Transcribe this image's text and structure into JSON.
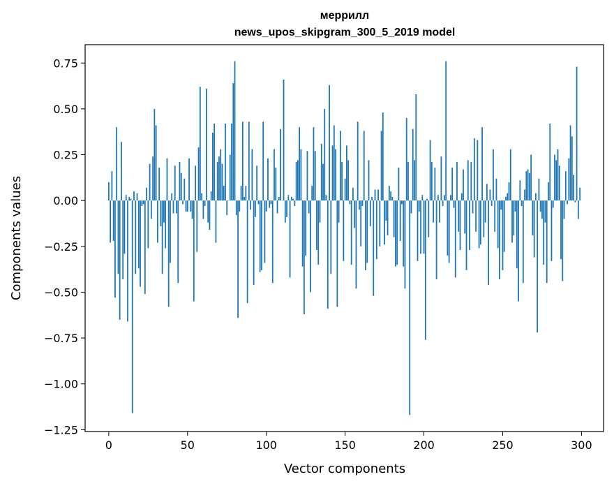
{
  "chart_data": {
    "type": "bar",
    "title": "меррилл",
    "subtitle": "news_upos_skipgram_300_5_2019 model",
    "xlabel": "Vector components",
    "ylabel": "Components values",
    "xlim": [
      -15,
      314
    ],
    "ylim": [
      -1.26,
      0.85
    ],
    "xticks": [
      0,
      50,
      100,
      150,
      200,
      250,
      300
    ],
    "yticks": [
      -1.25,
      -1.0,
      -0.75,
      -0.5,
      -0.25,
      0.0,
      0.25,
      0.5,
      0.75
    ],
    "ytick_labels": [
      "−1.25",
      "−1.00",
      "−0.75",
      "−0.50",
      "−0.25",
      "0.00",
      "0.25",
      "0.50",
      "0.75"
    ],
    "grid": false,
    "legend": "none",
    "color": "#1f77b4",
    "values": [
      0.1,
      -0.23,
      0.16,
      -0.22,
      -0.53,
      0.4,
      -0.4,
      -0.65,
      0.32,
      -0.43,
      -0.29,
      0.03,
      -0.66,
      0.02,
      0.01,
      -1.16,
      0.05,
      -0.4,
      0.04,
      -0.37,
      -0.47,
      -0.03,
      -0.02,
      -0.51,
      0.07,
      -0.26,
      0.2,
      -0.1,
      0.24,
      0.5,
      0.41,
      -0.23,
      0.18,
      -0.14,
      -0.4,
      -0.12,
      -0.26,
      0.23,
      -0.58,
      -0.34,
      0.04,
      -0.07,
      0.19,
      -0.07,
      -0.45,
      0.21,
      0.15,
      -0.02,
      0.12,
      -0.06,
      -0.06,
      0.23,
      -0.06,
      -0.1,
      -0.55,
      0.19,
      -0.28,
      0.29,
      0.62,
      0.04,
      -0.1,
      -0.03,
      0.61,
      -0.12,
      -0.16,
      0.05,
      0.37,
      0.42,
      -0.23,
      0.21,
      0.24,
      0.28,
      0.2,
      0.08,
      0.42,
      -0.08,
      0.0,
      0.25,
      0.42,
      0.64,
      0.76,
      -0.08,
      -0.64,
      -0.06,
      0.08,
      0.43,
      0.02,
      0.08,
      -0.56,
      0.43,
      -0.05,
      0.28,
      -0.46,
      -0.09,
      0.19,
      -0.02,
      -0.39,
      -0.38,
      0.43,
      -0.34,
      -0.06,
      0.23,
      -0.04,
      -0.02,
      -0.45,
      0.28,
      0.18,
      -0.07,
      0.02,
      0.39,
      0.0,
      0.66,
      -0.12,
      -0.09,
      0.03,
      -0.42,
      0.02,
      0.01,
      -0.03,
      0.21,
      0.22,
      0.4,
      0.28,
      -0.36,
      -0.62,
      -0.3,
      0.27,
      -0.07,
      -0.5,
      0.08,
      0.4,
      0.27,
      -0.27,
      -0.35,
      -0.12,
      0.31,
      0.2,
      0.5,
      0.03,
      -0.59,
      0.63,
      -0.4,
      0.3,
      0.41,
      0.28,
      -0.58,
      -0.12,
      0.38,
      0.21,
      -0.33,
      0.12,
      0.3,
      0.22,
      -0.02,
      -0.35,
      0.07,
      -0.15,
      -0.48,
      0.43,
      -0.05,
      -0.25,
      -0.03,
      0.38,
      -0.38,
      -0.34,
      0.22,
      -0.14,
      0.02,
      -0.52,
      0.06,
      -0.32,
      0.06,
      -0.25,
      0.38,
      0.48,
      -0.24,
      -0.11,
      -0.19,
      0.08,
      0.05,
      0.02,
      -0.2,
      -0.36,
      -0.35,
      0.18,
      -0.22,
      -0.02,
      -0.36,
      -0.48,
      0.45,
      0.21,
      -1.17,
      -0.07,
      0.39,
      0.22,
      0.58,
      -0.33,
      -0.06,
      -0.29,
      0.03,
      -0.29,
      -0.76,
      0.01,
      -0.2,
      0.33,
      0.21,
      -0.12,
      0.18,
      -0.43,
      0.03,
      -0.12,
      0.24,
      -0.03,
      0.03,
      0.76,
      -0.3,
      -0.34,
      0.03,
      0.18,
      -0.04,
      -0.42,
      0.21,
      -0.17,
      -0.27,
      0.04,
      0.17,
      -0.18,
      -0.38,
      0.22,
      -0.27,
      0.21,
      -0.07,
      0.34,
      -0.17,
      0.33,
      -0.26,
      -0.24,
      0.4,
      -0.2,
      -0.12,
      0.09,
      -0.46,
      0.06,
      -0.03,
      0.28,
      -0.17,
      0.12,
      -0.26,
      -0.43,
      -0.05,
      -0.38,
      -0.28,
      0.02,
      0.04,
      0.1,
      0.28,
      -0.23,
      -0.19,
      -0.06,
      -0.37,
      -0.55,
      0.11,
      -0.03,
      -0.45,
      0.06,
      0.16,
      0.17,
      0.15,
      0.25,
      -0.19,
      -0.31,
      0.04,
      -0.72,
      0.12,
      -0.06,
      -0.1,
      -0.35,
      -0.12,
      -0.45,
      0.1,
      0.42,
      -0.33,
      -0.04,
      0.25,
      0.22,
      0.28,
      0.19,
      -0.32,
      -0.44,
      -0.1,
      0.16,
      -0.02,
      0.23,
      0.41,
      0.35,
      0.14,
      -0.01,
      0.73,
      -0.1,
      0.07
    ]
  }
}
